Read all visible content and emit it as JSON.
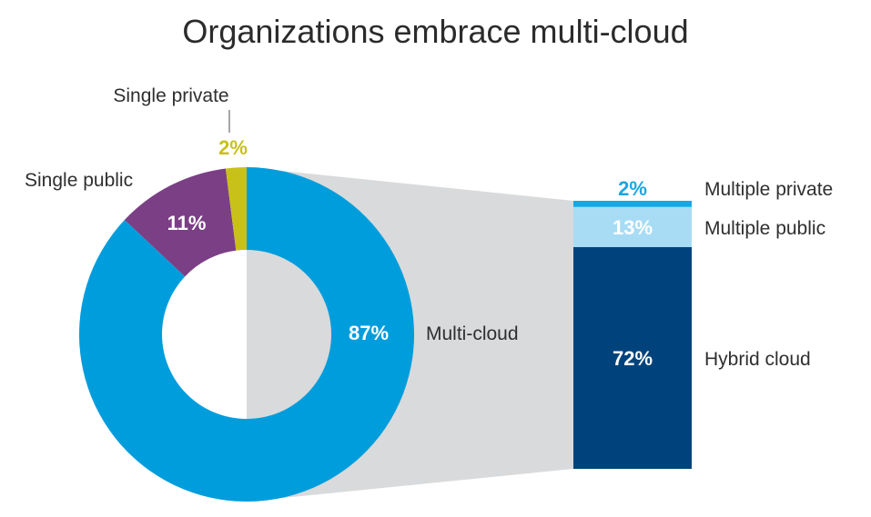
{
  "title": "Organizations embrace multi-cloud",
  "colors": {
    "multi_cloud": "#009ddc",
    "single_public": "#7b3f85",
    "single_private": "#c8c11a",
    "hybrid_cloud": "#00437c",
    "multiple_public": "#a8dcf5",
    "multiple_private": "#1aa7e0",
    "callout": "#d9dadb"
  },
  "chart_data": [
    {
      "type": "pie",
      "variant": "donut",
      "slices": [
        {
          "label": "Multi-cloud",
          "value": 87,
          "value_label": "87%"
        },
        {
          "label": "Single public",
          "value": 11,
          "value_label": "11%"
        },
        {
          "label": "Single private",
          "value": 2,
          "value_label": "2%"
        }
      ]
    },
    {
      "type": "bar",
      "variant": "stacked-breakdown",
      "breakdown_of": "Multi-cloud",
      "segments": [
        {
          "label": "Hybrid cloud",
          "value": 72,
          "value_label": "72%"
        },
        {
          "label": "Multiple public",
          "value": 13,
          "value_label": "13%"
        },
        {
          "label": "Multiple private",
          "value": 2,
          "value_label": "2%"
        }
      ]
    }
  ]
}
